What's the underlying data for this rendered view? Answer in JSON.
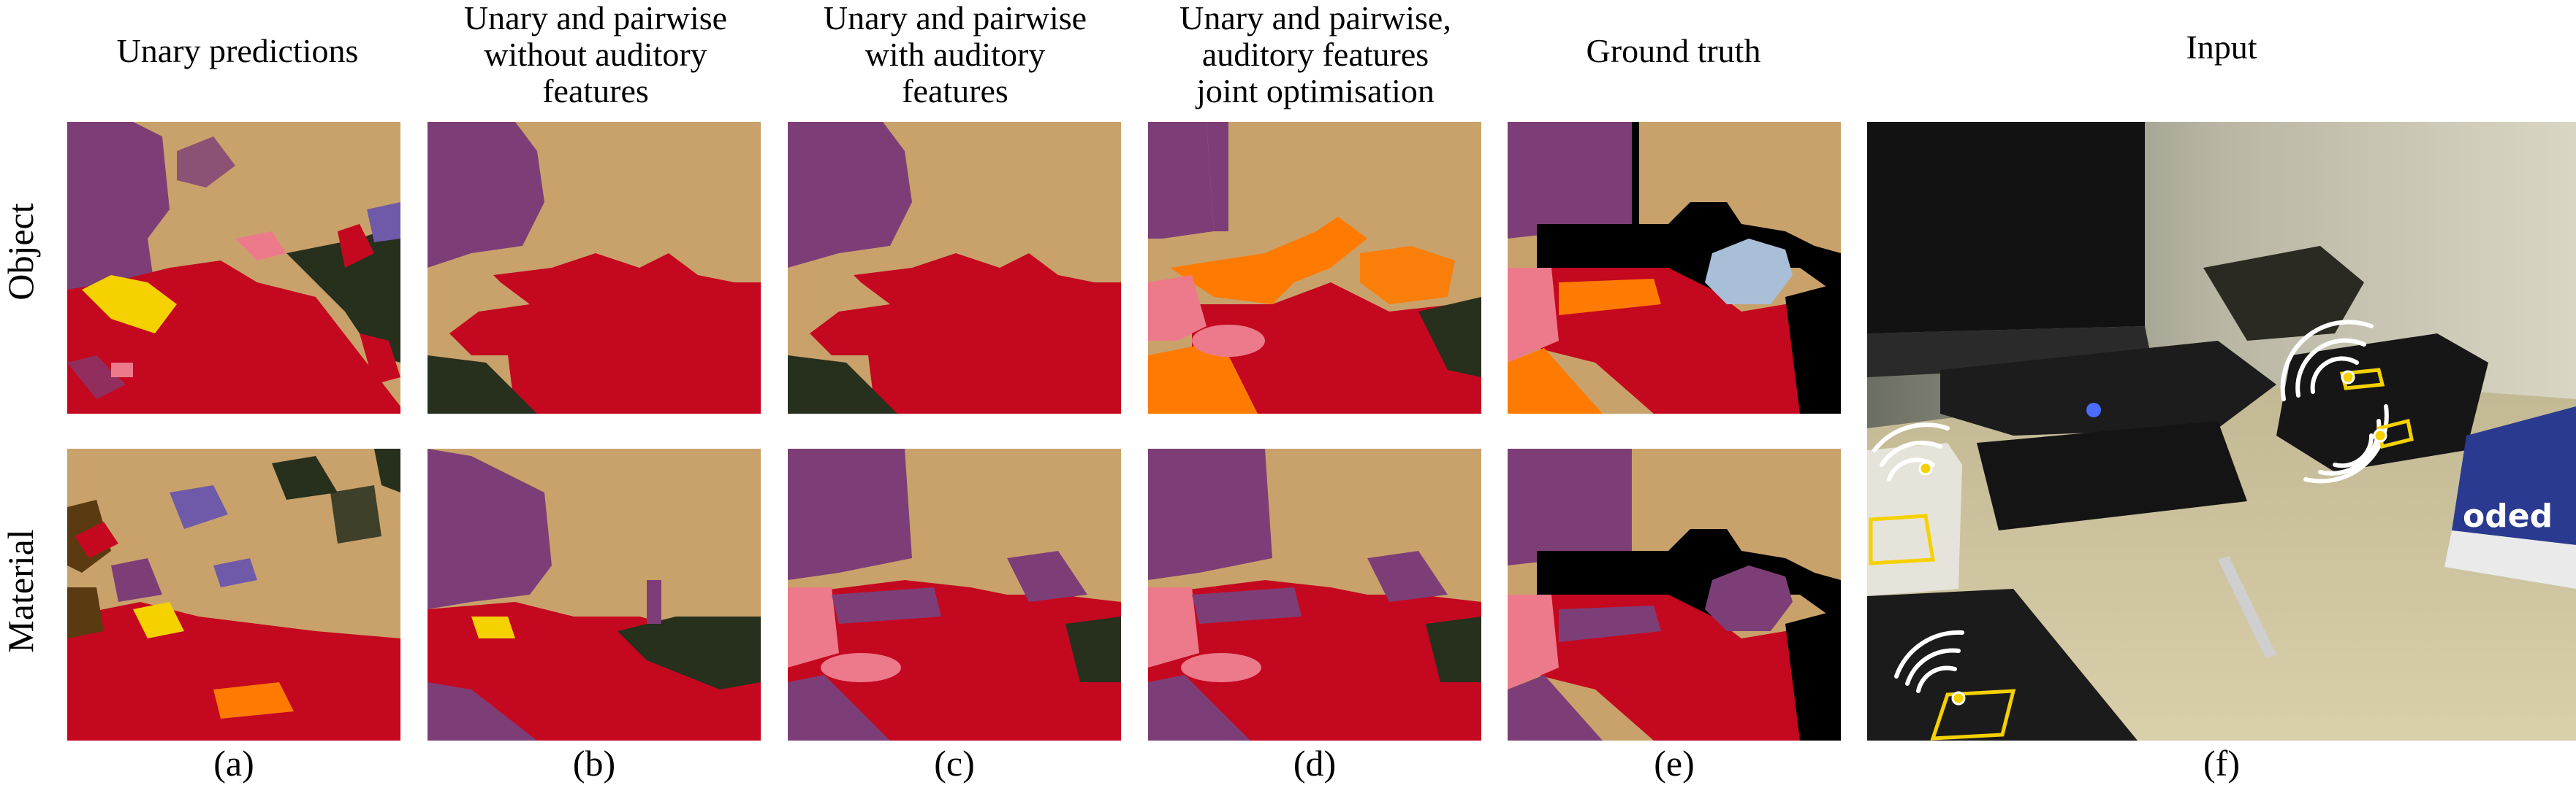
{
  "columns": [
    {
      "title": "Unary predictions",
      "label": "(a)"
    },
    {
      "title": "Unary and pairwise\nwithout auditory\nfeatures",
      "label": "(b)"
    },
    {
      "title": "Unary and pairwise\nwith auditory\nfeatures",
      "label": "(c)"
    },
    {
      "title": "Unary and pairwise,\nauditory features\njoint optimisation",
      "label": "(d)"
    },
    {
      "title": "Ground truth",
      "label": "(e)"
    },
    {
      "title": "Input",
      "label": "(f)"
    }
  ],
  "rows": [
    {
      "label": "Object"
    },
    {
      "label": "Material"
    }
  ],
  "input_image_text": "oded",
  "colors": {
    "tan": "#c9a26b",
    "purple": "#7d3e78",
    "red": "#c4081f",
    "dark_green": "#272f1d",
    "orange": "#ff7a00",
    "pink": "#ec7a8a",
    "light_blue": "#a9bfd8",
    "black": "#000000",
    "yellow": "#f5d100",
    "lavender": "#6e5aa8",
    "brown": "#5a3a10"
  }
}
